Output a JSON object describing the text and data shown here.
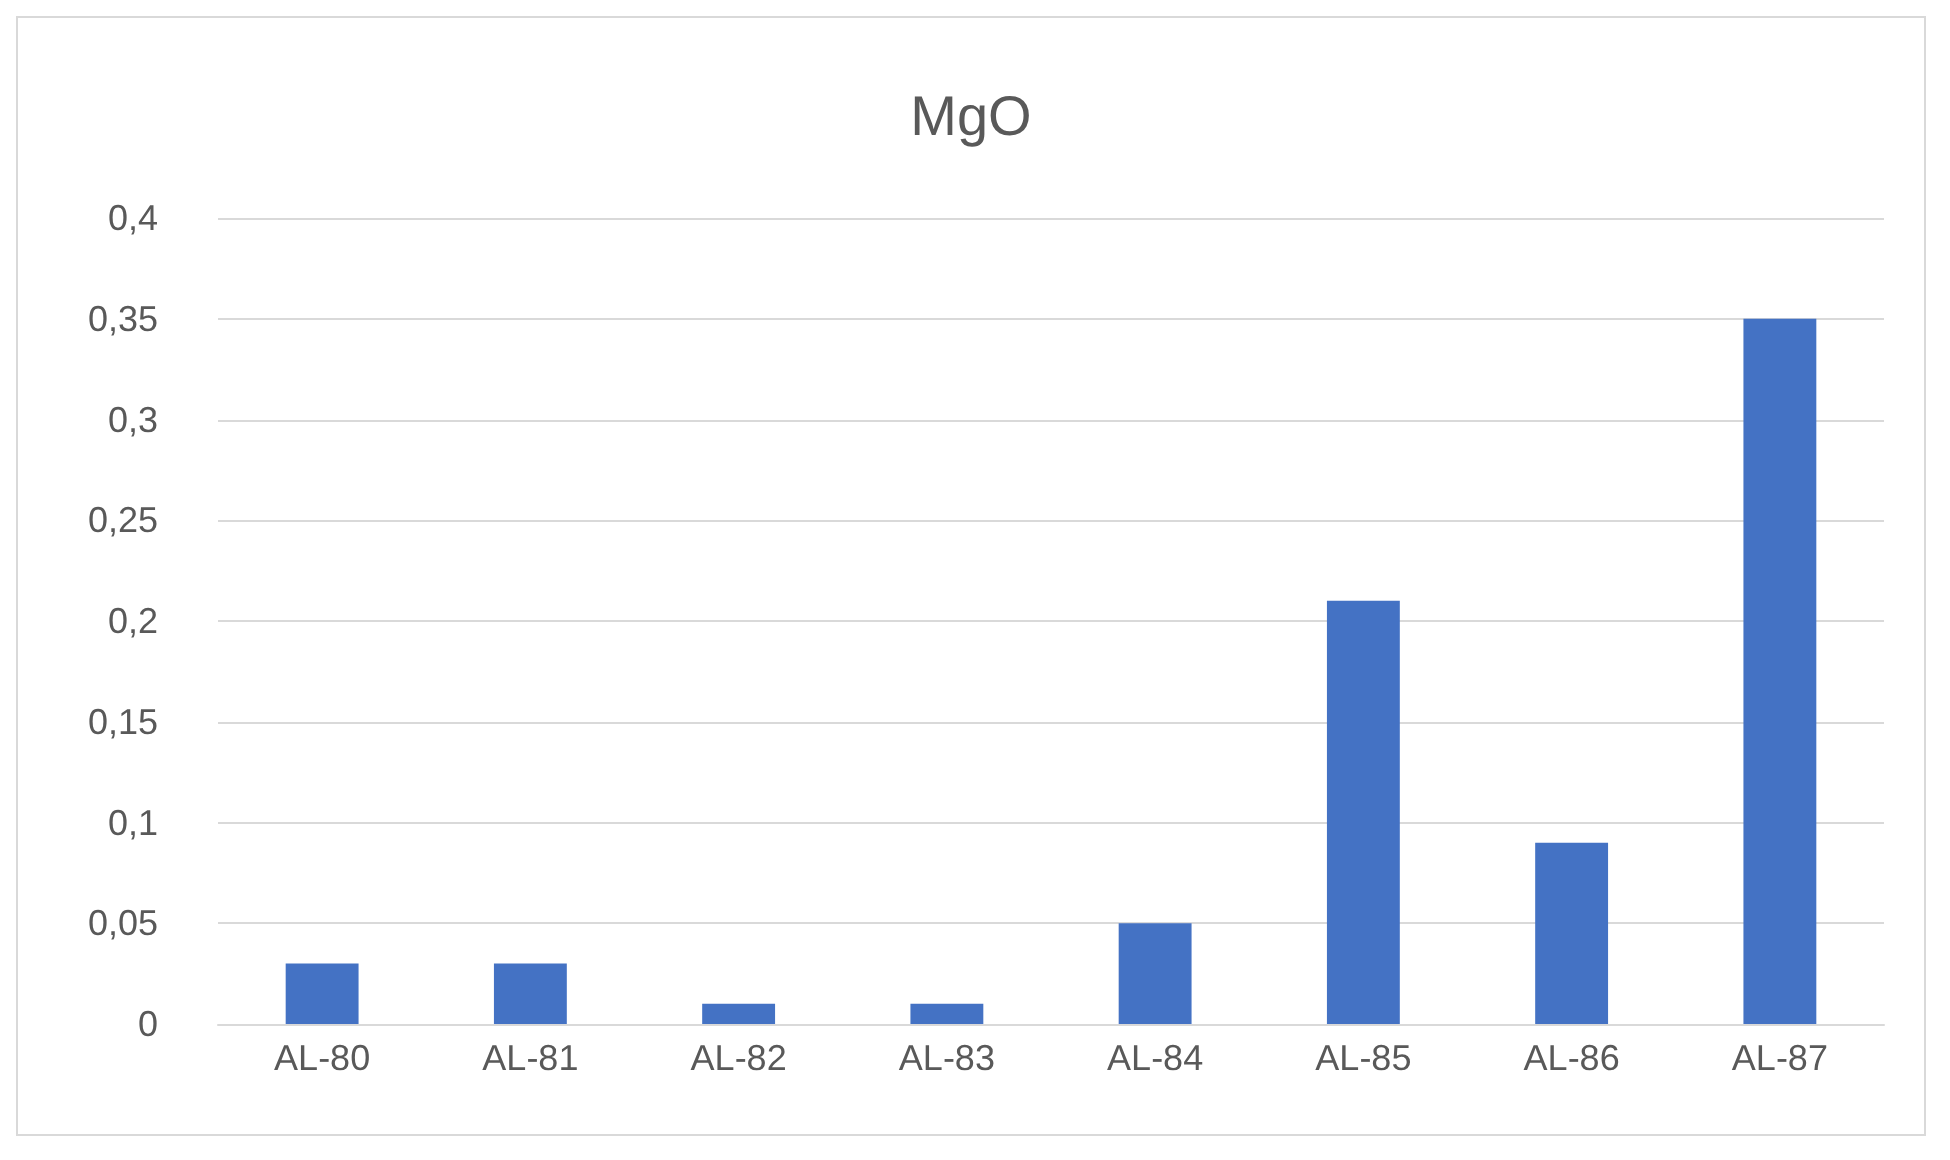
{
  "chart_data": {
    "type": "bar",
    "title": "MgO",
    "categories": [
      "AL-80",
      "AL-81",
      "AL-82",
      "AL-83",
      "AL-84",
      "AL-85",
      "AL-86",
      "AL-87"
    ],
    "values": [
      0.03,
      0.03,
      0.01,
      0.01,
      0.05,
      0.21,
      0.09,
      0.35
    ],
    "color": "#4472c4",
    "ylim": [
      0,
      0.4
    ],
    "yticks": [
      0,
      {
        "value": 0.05,
        "label": "0,05"
      },
      {
        "value": 0.1,
        "label": "0,1"
      },
      {
        "value": 0.15,
        "label": "0,15"
      },
      {
        "value": 0.2,
        "label": "0,2"
      },
      {
        "value": 0.25,
        "label": "0,25"
      },
      {
        "value": 0.3,
        "label": "0,3"
      },
      {
        "value": 0.35,
        "label": "0,35"
      },
      {
        "value": 0.4,
        "label": "0,4"
      }
    ],
    "grid": "y"
  }
}
